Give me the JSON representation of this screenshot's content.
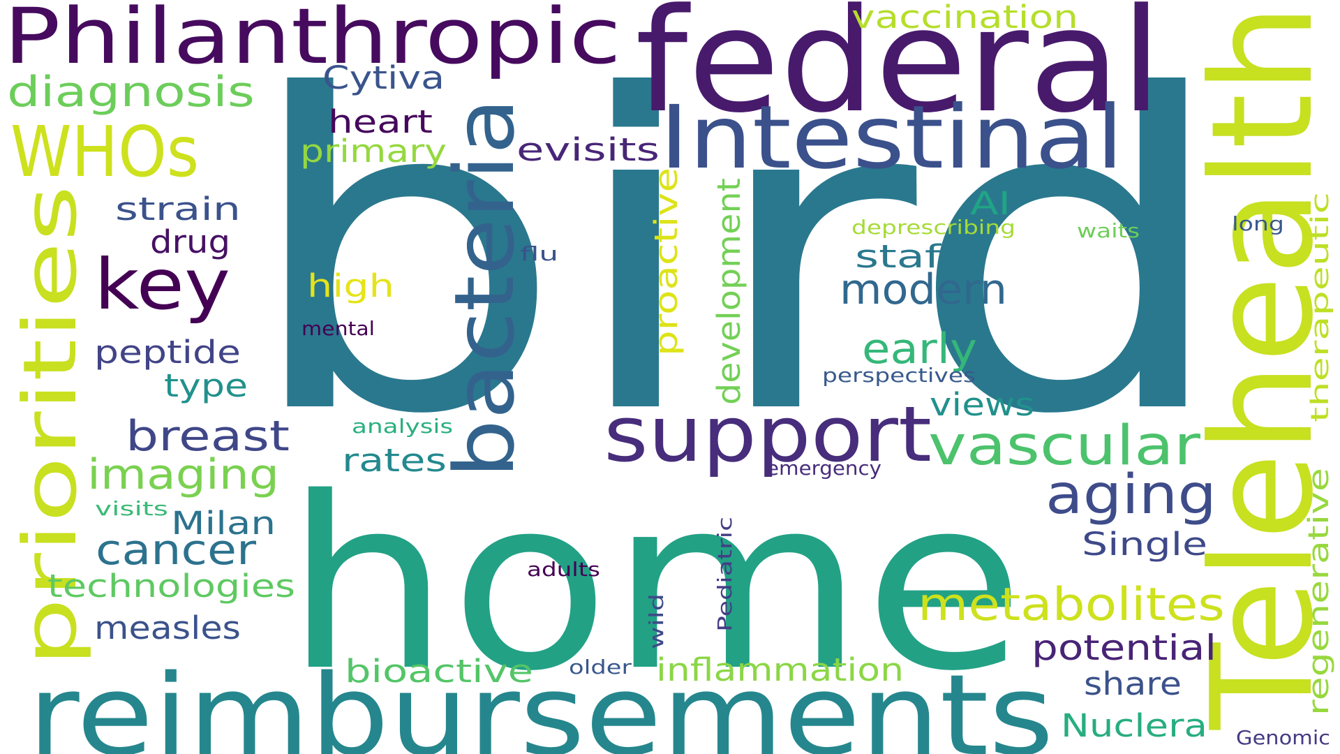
{
  "background": "#ffffff",
  "palette": {
    "dark_purple": "#440154",
    "purple": "#482173",
    "indigo": "#433e85",
    "blue": "#38588c",
    "steel": "#2d708e",
    "teal": "#25858e",
    "green_teal": "#1e9b8a",
    "sea_green": "#2ab07f",
    "green": "#52c569",
    "lime": "#86d549",
    "yellow_green": "#c2df23",
    "yellow": "#fde725"
  },
  "words": [
    {
      "text": "bird",
      "color": "#2a788e"
    },
    {
      "text": "home",
      "color": "#22a185"
    },
    {
      "text": "federal",
      "color": "#481a6c"
    },
    {
      "text": "reimbursements",
      "color": "#25878d"
    },
    {
      "text": "Philanthropic",
      "color": "#460b5e"
    },
    {
      "text": "Telehealth",
      "color": "#c7e020"
    },
    {
      "text": "Intestinal",
      "color": "#3b518b"
    },
    {
      "text": "bacteria",
      "color": "#33638d"
    },
    {
      "text": "support",
      "color": "#472d7b"
    },
    {
      "text": "priorities",
      "color": "#c8e01f"
    },
    {
      "text": "WHOs",
      "color": "#cde11d"
    },
    {
      "text": "key",
      "color": "#440154"
    },
    {
      "text": "vascular",
      "color": "#4cc26c"
    },
    {
      "text": "aging",
      "color": "#3e4c8a"
    },
    {
      "text": "metabolites",
      "color": "#cde11d"
    },
    {
      "text": "diagnosis",
      "color": "#6ccd5a"
    },
    {
      "text": "vaccination",
      "color": "#b5de2b"
    },
    {
      "text": "imaging",
      "color": "#7ad151"
    },
    {
      "text": "breast",
      "color": "#3f4788"
    },
    {
      "text": "cancer",
      "color": "#2c728e"
    },
    {
      "text": "modern",
      "color": "#31688e"
    },
    {
      "text": "early",
      "color": "#35b779"
    },
    {
      "text": "potential",
      "color": "#482475"
    },
    {
      "text": "inflammation",
      "color": "#8bd646"
    },
    {
      "text": "bioactive",
      "color": "#54c568"
    },
    {
      "text": "technologies",
      "color": "#5ec962"
    },
    {
      "text": "Nuclera",
      "color": "#27ad81"
    },
    {
      "text": "Cytiva",
      "color": "#3a548c"
    },
    {
      "text": "heart",
      "color": "#46085c"
    },
    {
      "text": "primary",
      "color": "#95d840"
    },
    {
      "text": "evisits",
      "color": "#482677"
    },
    {
      "text": "strain",
      "color": "#3b528b"
    },
    {
      "text": "drug",
      "color": "#471164"
    },
    {
      "text": "peptide",
      "color": "#414487"
    },
    {
      "text": "type",
      "color": "#21918c"
    },
    {
      "text": "rates",
      "color": "#23898e"
    },
    {
      "text": "Milan",
      "color": "#2c728e"
    },
    {
      "text": "measles",
      "color": "#3b528b"
    },
    {
      "text": "views",
      "color": "#21918c"
    },
    {
      "text": "staff",
      "color": "#2a788e"
    },
    {
      "text": "AI",
      "color": "#20a486"
    },
    {
      "text": "Single",
      "color": "#3e4989"
    },
    {
      "text": "share",
      "color": "#3b528b"
    },
    {
      "text": "high",
      "color": "#e5e419"
    },
    {
      "text": "proactive",
      "color": "#dde318"
    },
    {
      "text": "development",
      "color": "#73d056"
    },
    {
      "text": "therapeutic",
      "color": "#bddf26"
    },
    {
      "text": "regenerative",
      "color": "#98d83e"
    },
    {
      "text": "Pediatric",
      "color": "#433e85"
    },
    {
      "text": "wild",
      "color": "#3e4a89"
    },
    {
      "text": "deprescribing",
      "color": "#a5db36"
    },
    {
      "text": "waits",
      "color": "#6ece58"
    },
    {
      "text": "long",
      "color": "#38598c"
    },
    {
      "text": "flu",
      "color": "#3b528b"
    },
    {
      "text": "mental",
      "color": "#440154"
    },
    {
      "text": "perspectives",
      "color": "#38598c"
    },
    {
      "text": "analysis",
      "color": "#29af7f"
    },
    {
      "text": "emergency",
      "color": "#472c7a"
    },
    {
      "text": "visits",
      "color": "#3aba76"
    },
    {
      "text": "adults",
      "color": "#440154"
    },
    {
      "text": "older",
      "color": "#38588c"
    },
    {
      "text": "Genomic",
      "color": "#443a83"
    }
  ]
}
